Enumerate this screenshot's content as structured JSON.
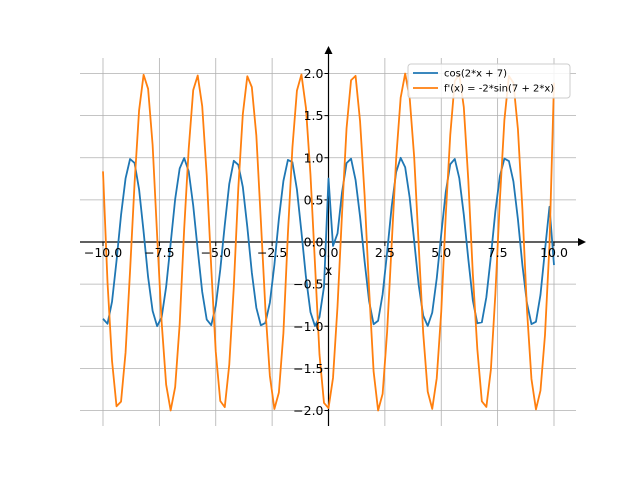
{
  "chart_data": {
    "type": "line",
    "xlabel": "x",
    "ylabel": "",
    "xlim": [
      -10,
      10
    ],
    "ylim": [
      -2,
      2
    ],
    "grid": true,
    "legend_position": "top-right",
    "x_ticks": [
      {
        "value": -10.0,
        "label": "−10.0"
      },
      {
        "value": -7.5,
        "label": "−7.5"
      },
      {
        "value": -5.0,
        "label": "−5.0"
      },
      {
        "value": -2.5,
        "label": "−2.5"
      },
      {
        "value": 0.0,
        "label": "0.0"
      },
      {
        "value": 2.5,
        "label": "2.5"
      },
      {
        "value": 5.0,
        "label": "5.0"
      },
      {
        "value": 7.5,
        "label": "7.5"
      },
      {
        "value": 10.0,
        "label": "10.0"
      }
    ],
    "y_ticks": [
      {
        "value": -2.0,
        "label": "−2.0"
      },
      {
        "value": -1.5,
        "label": "−1.5"
      },
      {
        "value": -1.0,
        "label": "−1.0"
      },
      {
        "value": -0.5,
        "label": "−0.5"
      },
      {
        "value": 0.0,
        "label": "0.0"
      },
      {
        "value": 0.5,
        "label": "0.5"
      },
      {
        "value": 1.0,
        "label": "1.0"
      },
      {
        "value": 1.5,
        "label": "1.5"
      },
      {
        "value": 2.0,
        "label": "2.0"
      }
    ],
    "series": [
      {
        "name": "cos(2*x + 7)",
        "color": "#1f77b4",
        "x": [
          -10,
          -9.8,
          -9.6,
          -9.4,
          -9.2,
          -9,
          -8.8,
          -8.6,
          -8.4,
          -8.2,
          -8,
          -7.8,
          -7.6,
          -7.4,
          -7.2,
          -7,
          -6.8,
          -6.6,
          -6.4,
          -6.2,
          -6,
          -5.8,
          -5.6,
          -5.4,
          -5.2,
          -5,
          -4.8,
          -4.6,
          -4.4,
          -4.2,
          -4,
          -3.8,
          -3.6,
          -3.4,
          -3.2,
          -3,
          -2.8,
          -2.6,
          -2.4,
          -2.2,
          -2,
          -1.8,
          -1.6,
          -1.4,
          -1.2,
          -1,
          -0.8,
          -0.6,
          -0.4,
          -0.2,
          0,
          0.2,
          0.4,
          0.6,
          0.8,
          1,
          1.2,
          1.4,
          1.6,
          1.8,
          2,
          2.2,
          2.4,
          2.6,
          2.8,
          3,
          3.2,
          3.4,
          3.6,
          3.8,
          4,
          4.2,
          4.4,
          4.6,
          4.8,
          5,
          5.2,
          5.4,
          5.6,
          5.8,
          6,
          6.2,
          6.4,
          6.6,
          6.8,
          7,
          7.2,
          7.4,
          7.6,
          7.8,
          8,
          8.2,
          8.4,
          8.6,
          8.8,
          9,
          9.2,
          9.4,
          9.6,
          9.8,
          10
        ],
        "y": [
          -0.911,
          -0.971,
          -0.709,
          -0.223,
          0.32,
          0.754,
          0.985,
          0.938,
          0.625,
          0.123,
          -0.416,
          -0.817,
          -0.999,
          -0.894,
          -0.533,
          -0.017,
          0.508,
          0.872,
          0.997,
          0.84,
          0.434,
          -0.091,
          -0.592,
          -0.921,
          -0.987,
          -0.759,
          -0.328,
          0.201,
          0.691,
          0.964,
          0.916,
          0.654,
          0.178,
          -0.363,
          -0.781,
          -0.989,
          -0.961,
          -0.72,
          -0.271,
          0.276,
          0.724,
          0.974,
          0.947,
          0.623,
          0.118,
          -0.416,
          -0.832,
          -0.998,
          -0.891,
          -0.532,
          0.754,
          -0.047,
          0.101,
          0.589,
          0.936,
          0.989,
          0.737,
          0.301,
          -0.227,
          -0.701,
          -0.976,
          -0.935,
          -0.62,
          -0.123,
          0.416,
          0.829,
          0.999,
          0.887,
          0.526,
          0.011,
          -0.511,
          -0.874,
          -0.997,
          -0.838,
          -0.431,
          0.093,
          0.594,
          0.923,
          0.986,
          0.757,
          0.325,
          -0.203,
          -0.692,
          -0.965,
          -0.953,
          -0.656,
          -0.175,
          0.365,
          0.782,
          0.99,
          0.961,
          0.719,
          0.27,
          -0.277,
          -0.725,
          -0.974,
          -0.947,
          -0.627,
          -0.096,
          0.418,
          -0.274
        ]
      },
      {
        "name": "f'(x) = -2*sin(7 + 2*x)",
        "color": "#ff7f0e",
        "x": [
          -10,
          -9.8,
          -9.6,
          -9.4,
          -9.2,
          -9,
          -8.8,
          -8.6,
          -8.4,
          -8.2,
          -8,
          -7.8,
          -7.6,
          -7.4,
          -7.2,
          -7,
          -6.8,
          -6.6,
          -6.4,
          -6.2,
          -6,
          -5.8,
          -5.6,
          -5.4,
          -5.2,
          -5,
          -4.8,
          -4.6,
          -4.4,
          -4.2,
          -4,
          -3.8,
          -3.6,
          -3.4,
          -3.2,
          -3,
          -2.8,
          -2.6,
          -2.4,
          -2.2,
          -2,
          -1.8,
          -1.6,
          -1.4,
          -1.2,
          -1,
          -0.8,
          -0.6,
          -0.4,
          -0.2,
          0,
          0.2,
          0.4,
          0.6,
          0.8,
          1,
          1.2,
          1.4,
          1.6,
          1.8,
          2,
          2.2,
          2.4,
          2.6,
          2.8,
          3,
          3.2,
          3.4,
          3.6,
          3.8,
          4,
          4.2,
          4.4,
          4.6,
          4.8,
          5,
          5.2,
          5.4,
          5.6,
          5.8,
          6,
          6.2,
          6.4,
          6.6,
          6.8,
          7,
          7.2,
          7.4,
          7.6,
          7.8,
          8,
          8.2,
          8.4,
          8.6,
          8.8,
          9,
          9.2,
          9.4,
          9.6,
          9.8,
          10
        ],
        "y": [
          0.838,
          -0.479,
          -1.41,
          -1.95,
          -1.894,
          -1.314,
          -0.343,
          0.7,
          1.561,
          1.985,
          1.818,
          1.154,
          0.08,
          -0.949,
          -1.692,
          -2,
          -1.722,
          -0.977,
          0.155,
          1.103,
          1.802,
          1.976,
          1.611,
          0.79,
          -0.306,
          -1.302,
          -1.887,
          -1.96,
          -1.454,
          -0.533,
          0.637,
          1.516,
          1.967,
          1.838,
          1.264,
          0.253,
          -0.786,
          -1.59,
          -1.982,
          -1.786,
          -1.082,
          0.101,
          1.122,
          1.797,
          1.988,
          1.592,
          0.802,
          -0.258,
          -1.334,
          -1.91,
          -1.971,
          -1.614,
          -0.763,
          0.337,
          1.348,
          1.92,
          1.972,
          1.433,
          0.559,
          -0.56,
          -1.536,
          -2,
          -1.803,
          -1.064,
          -0.036,
          0.989,
          1.713,
          1.999,
          1.711,
          1.006,
          -0.037,
          -1.082,
          -1.776,
          -1.981,
          -1.617,
          -0.826,
          0.318,
          1.273,
          1.911,
          1.988,
          1.601,
          0.732,
          -0.376,
          -1.272,
          -1.891,
          -1.958,
          -1.518,
          -0.617,
          0.5,
          1.448,
          1.97,
          1.889,
          1.34,
          0.384,
          -0.798,
          -1.626,
          -1.987,
          -1.763,
          -1.106,
          -0.033,
          1.891
        ]
      }
    ]
  },
  "colors": {
    "grid": "#b0b0b0",
    "axis": "#000000",
    "legend_border": "#cccccc"
  }
}
